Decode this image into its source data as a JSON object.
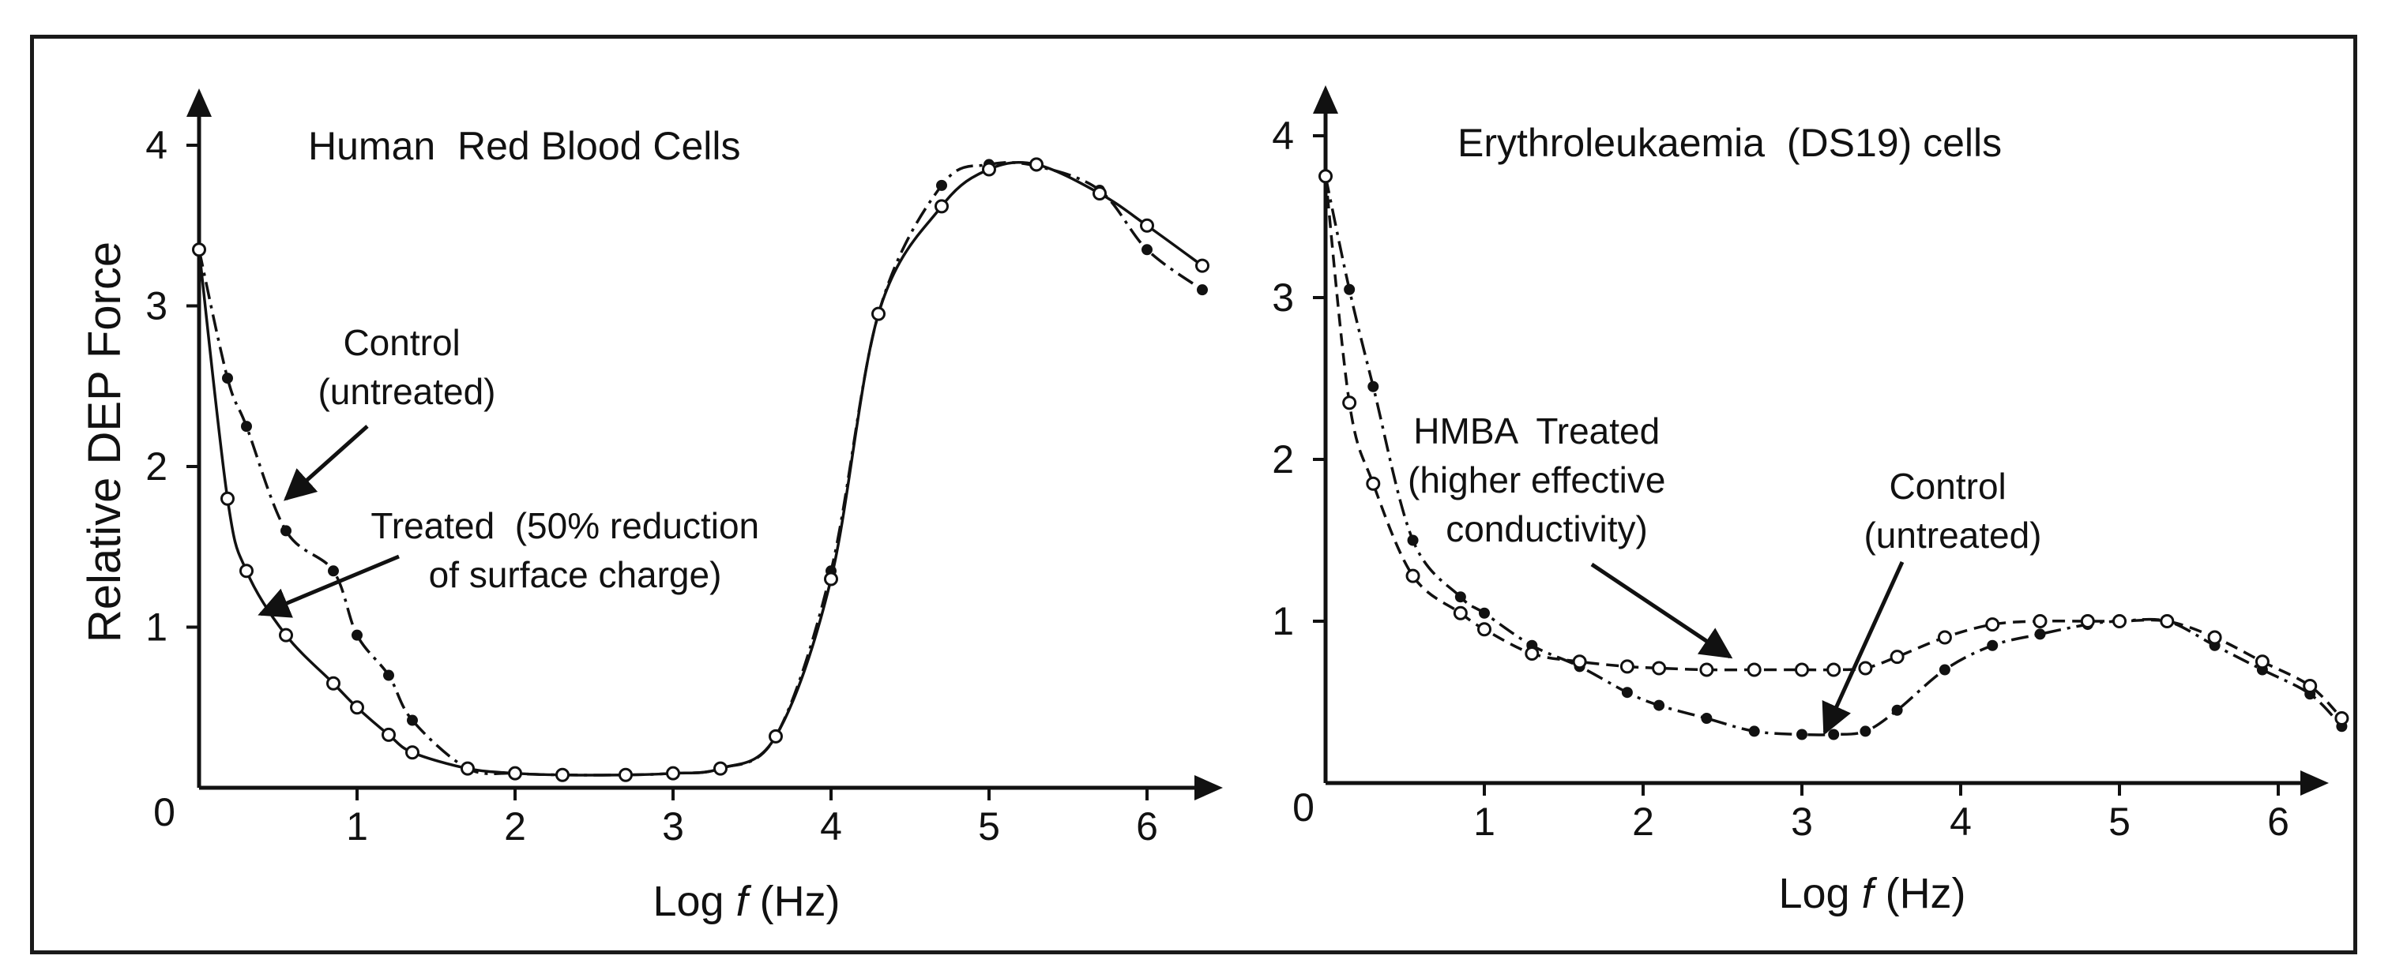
{
  "colors": {
    "ink": "#111111",
    "frame": "#1a1a1a",
    "background": "#ffffff",
    "open_marker_fill": "#ffffff"
  },
  "chart_data": [
    {
      "type": "line",
      "title": "Human  Red Blood Cells",
      "xlabel_prefix": "Log ",
      "xlabel_var": "f",
      "xlabel_suffix": " (Hz)",
      "ylabel": "Relative DEP Force",
      "xlim": [
        0,
        6.5
      ],
      "ylim": [
        0,
        4.2
      ],
      "x_ticks": [
        "0",
        "1",
        "2",
        "3",
        "4",
        "5",
        "6"
      ],
      "y_ticks": [
        "1",
        "2",
        "3",
        "4"
      ],
      "series": [
        {
          "name": "Control (untreated)",
          "marker": "filled",
          "line": "dash-dot",
          "x": [
            0,
            0.18,
            0.3,
            0.55,
            0.85,
            1.0,
            1.2,
            1.35,
            1.7,
            2.0,
            2.3,
            2.7,
            3.0,
            3.3,
            3.65,
            4.0,
            4.3,
            4.7,
            5.0,
            5.3,
            5.7,
            6.0,
            6.35
          ],
          "y": [
            3.35,
            2.55,
            2.25,
            1.6,
            1.35,
            0.95,
            0.7,
            0.42,
            0.12,
            0.09,
            0.08,
            0.08,
            0.09,
            0.12,
            0.32,
            1.35,
            2.95,
            3.75,
            3.88,
            3.87,
            3.72,
            3.35,
            3.1
          ]
        },
        {
          "name": "Treated (50% reduction of surface charge)",
          "marker": "open",
          "line": "solid",
          "x": [
            0,
            0.18,
            0.3,
            0.55,
            0.85,
            1.0,
            1.2,
            1.35,
            1.7,
            2.0,
            2.3,
            2.7,
            3.0,
            3.3,
            3.65,
            4.0,
            4.3,
            4.7,
            5.0,
            5.3,
            5.7,
            6.0,
            6.35
          ],
          "y": [
            3.35,
            1.8,
            1.35,
            0.95,
            0.65,
            0.5,
            0.33,
            0.22,
            0.12,
            0.09,
            0.08,
            0.08,
            0.09,
            0.12,
            0.32,
            1.3,
            2.95,
            3.62,
            3.85,
            3.88,
            3.7,
            3.5,
            3.25
          ]
        }
      ],
      "annotations": [
        {
          "lines": [
            "Control",
            "(untreated)"
          ]
        },
        {
          "lines": [
            "Treated  (50% reduction",
            "of surface charge)"
          ]
        }
      ]
    },
    {
      "type": "line",
      "title": "Erythroleukaemia  (DS19) cells",
      "xlabel_prefix": "Log ",
      "xlabel_var": "f",
      "xlabel_suffix": " (Hz)",
      "ylabel": "",
      "xlim": [
        0,
        6.5
      ],
      "ylim": [
        0,
        4.2
      ],
      "x_ticks": [
        "0",
        "1",
        "2",
        "3",
        "4",
        "5",
        "6"
      ],
      "y_ticks": [
        "1",
        "2",
        "3",
        "4"
      ],
      "series": [
        {
          "name": "Control (untreated)",
          "marker": "filled",
          "line": "dash-dot",
          "x": [
            0,
            0.15,
            0.3,
            0.55,
            0.85,
            1.0,
            1.3,
            1.6,
            1.9,
            2.1,
            2.4,
            2.7,
            3.0,
            3.2,
            3.4,
            3.6,
            3.9,
            4.2,
            4.5,
            4.8,
            5.0,
            5.3,
            5.6,
            5.9,
            6.2,
            6.4
          ],
          "y": [
            3.75,
            3.05,
            2.45,
            1.5,
            1.15,
            1.05,
            0.85,
            0.72,
            0.56,
            0.48,
            0.4,
            0.32,
            0.3,
            0.3,
            0.32,
            0.45,
            0.7,
            0.85,
            0.92,
            0.98,
            1.0,
            1.0,
            0.85,
            0.7,
            0.55,
            0.35
          ]
        },
        {
          "name": "HMBA Treated (higher effective conductivity)",
          "marker": "open",
          "line": "dashed",
          "x": [
            0,
            0.15,
            0.3,
            0.55,
            0.85,
            1.0,
            1.3,
            1.6,
            1.9,
            2.1,
            2.4,
            2.7,
            3.0,
            3.2,
            3.4,
            3.6,
            3.9,
            4.2,
            4.5,
            4.8,
            5.0,
            5.3,
            5.6,
            5.9,
            6.2,
            6.4
          ],
          "y": [
            3.75,
            2.35,
            1.85,
            1.28,
            1.05,
            0.95,
            0.8,
            0.75,
            0.72,
            0.71,
            0.7,
            0.7,
            0.7,
            0.7,
            0.71,
            0.78,
            0.9,
            0.98,
            1.0,
            1.0,
            1.0,
            1.0,
            0.9,
            0.75,
            0.6,
            0.4
          ]
        }
      ],
      "annotations": [
        {
          "lines": [
            "HMBA  Treated",
            "(higher effective",
            "conductivity)"
          ]
        },
        {
          "lines": [
            "Control",
            "(untreated)"
          ]
        }
      ]
    }
  ]
}
